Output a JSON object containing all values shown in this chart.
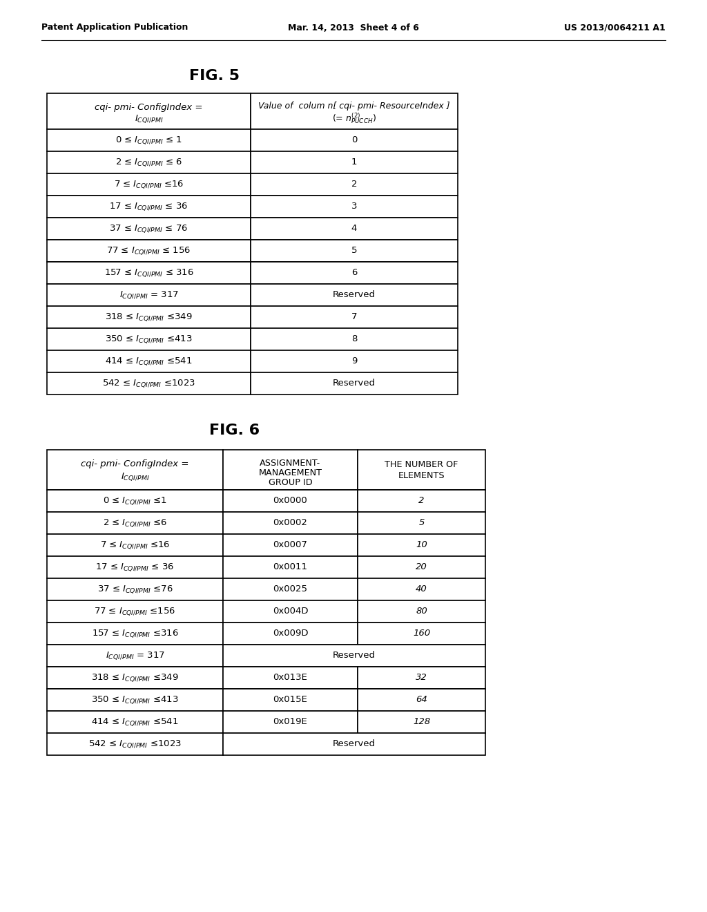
{
  "header_text": {
    "left": "Patent Application Publication",
    "center": "Mar. 14, 2013  Sheet 4 of 6",
    "right": "US 2013/0064211 A1"
  },
  "fig5": {
    "title": "FIG. 5",
    "rows": [
      [
        "0 ≤ I_CQI/PMI ≤ 1",
        "0"
      ],
      [
        "2 ≤ I_CQI/PMI ≤ 6",
        "1"
      ],
      [
        "7 ≤ I_CQI/PMI ≤16",
        "2"
      ],
      [
        "17 ≤ I_CQI/PMI ≤ 36",
        "3"
      ],
      [
        "37 ≤ I_CQI/PMI ≤ 76",
        "4"
      ],
      [
        "77 ≤ I_CQI/PMI ≤ 156",
        "5"
      ],
      [
        "157 ≤ I_CQI/PMI ≤ 316",
        "6"
      ],
      [
        "I_CQI/PMI = 317",
        "Reserved"
      ],
      [
        "318 ≤ I_CQI/PMI ≤349",
        "7"
      ],
      [
        "350 ≤ I_CQI/PMI ≤413",
        "8"
      ],
      [
        "414 ≤ I_CQI/PMI ≤541",
        "9"
      ],
      [
        "542 ≤ I_CQI/PMI ≤1023",
        "Reserved"
      ]
    ]
  },
  "fig6": {
    "title": "FIG. 6",
    "rows": [
      [
        "0 ≤ I_CQI/PMI ≤1",
        "0x0000",
        "2"
      ],
      [
        "2 ≤ I_CQI/PMI ≤6",
        "0x0002",
        "5"
      ],
      [
        "7 ≤ I_CQI/PMI ≤16",
        "0x0007",
        "10"
      ],
      [
        "17 ≤ I_CQI/PMI ≤ 36",
        "0x0011",
        "20"
      ],
      [
        "37 ≤ I_CQI/PMI ≤76",
        "0x0025",
        "40"
      ],
      [
        "77 ≤ I_CQI/PMI ≤156",
        "0x004D",
        "80"
      ],
      [
        "157 ≤ I_CQI/PMI ≤316",
        "0x009D",
        "160"
      ],
      [
        "I_CQI/PMI = 317",
        "Reserved",
        ""
      ],
      [
        "318 ≤ I_CQI/PMI ≤349",
        "0x013E",
        "32"
      ],
      [
        "350 ≤ I_CQI/PMI ≤413",
        "0x015E",
        "64"
      ],
      [
        "414 ≤ I_CQI/PMI ≤541",
        "0x019E",
        "128"
      ],
      [
        "542 ≤ I_CQI/PMI ≤1023",
        "Reserved",
        ""
      ]
    ]
  },
  "bg_color": "#ffffff",
  "text_color": "#000000",
  "line_color": "#000000"
}
